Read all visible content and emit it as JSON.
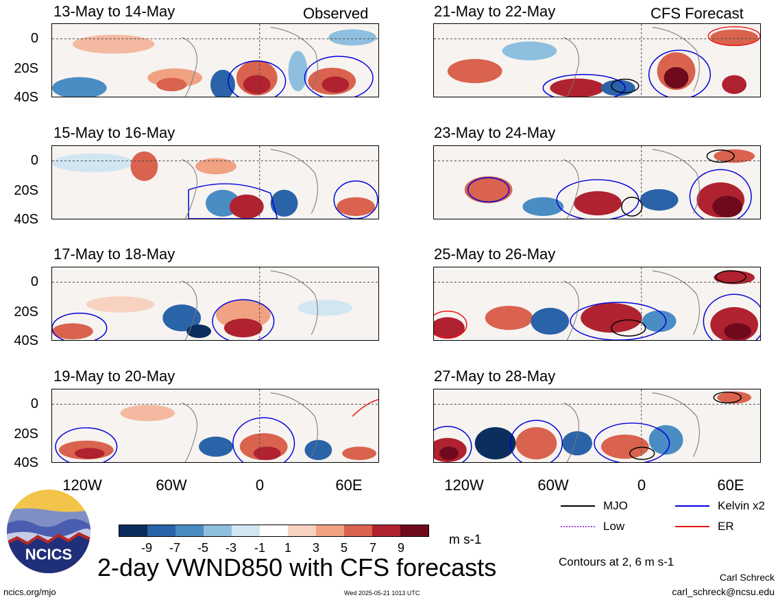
{
  "panels_left": [
    {
      "title": "13-May to 14-May",
      "tag": "Observed"
    },
    {
      "title": "15-May to 16-May",
      "tag": ""
    },
    {
      "title": "17-May to 18-May",
      "tag": ""
    },
    {
      "title": "19-May to 20-May",
      "tag": ""
    }
  ],
  "panels_right": [
    {
      "title": "21-May to 22-May",
      "tag": "CFS Forecast"
    },
    {
      "title": "23-May to 24-May",
      "tag": ""
    },
    {
      "title": "25-May to 26-May",
      "tag": ""
    },
    {
      "title": "27-May to 28-May",
      "tag": ""
    }
  ],
  "y_ticks": [
    "0",
    "20S",
    "40S"
  ],
  "x_ticks": [
    "120W",
    "60W",
    "0",
    "60E"
  ],
  "legend": {
    "mjo": {
      "label": "MJO",
      "color": "#000000"
    },
    "kelvin": {
      "label": "Kelvin x2",
      "color": "#0000dd"
    },
    "low": {
      "label": "Low",
      "color": "#a040e0"
    },
    "er": {
      "label": "ER",
      "color": "#ee1111"
    }
  },
  "colorbar": {
    "ticks": [
      "-9",
      "-7",
      "-5",
      "-3",
      "-1",
      "1",
      "3",
      "5",
      "7",
      "9"
    ],
    "colors": [
      "#0b2e5e",
      "#2a63a8",
      "#4a8cc4",
      "#8ebfde",
      "#d2e6f2",
      "#ffffff",
      "#f8d2c0",
      "#f0a283",
      "#d9634e",
      "#b02230",
      "#6e0a1c"
    ],
    "units": "m s-1"
  },
  "contours_note": "Contours at 2, 6 m s-1",
  "main_title": "2-day VWND850 with CFS forecasts",
  "footer": {
    "site": "ncics.org/mjo",
    "timestamp": "Wed 2025-05-21 1013 UTC",
    "author": "Carl Schreck",
    "email": "carl_schreck@ncsu.edu"
  },
  "logo_text": "NCICS"
}
